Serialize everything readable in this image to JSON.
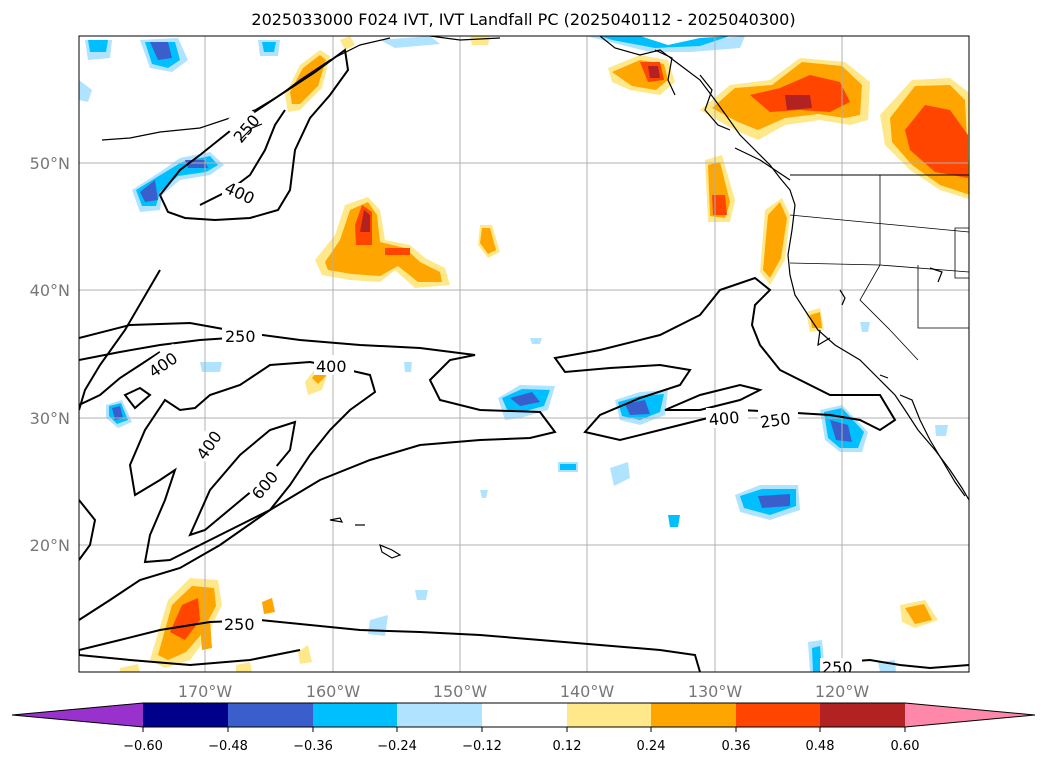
{
  "title": "2025033000 F024 IVT, IVT Landfall PC (2025040112 - 2025040300)",
  "lat_ticks": [
    "20°N",
    "30°N",
    "40°N",
    "50°N"
  ],
  "lon_ticks": [
    "170°W",
    "160°W",
    "150°W",
    "140°W",
    "130°W",
    "120°W"
  ],
  "contour_labels": [
    "250",
    "400",
    "250",
    "400",
    "400",
    "400",
    "600",
    "400",
    "250",
    "250",
    "250"
  ],
  "colorbar": {
    "ticks": [
      "−0.60",
      "−0.48",
      "−0.36",
      "−0.24",
      "−0.12",
      "0.12",
      "0.24",
      "0.36",
      "0.48",
      "0.60"
    ],
    "colors": [
      "#9932cc",
      "#00008b",
      "#3a5fcd",
      "#00bfff",
      "#afe3ff",
      "#ffffff",
      "#ffe88a",
      "#ffa500",
      "#ff4500",
      "#b22222",
      "#ff88aa"
    ]
  }
}
